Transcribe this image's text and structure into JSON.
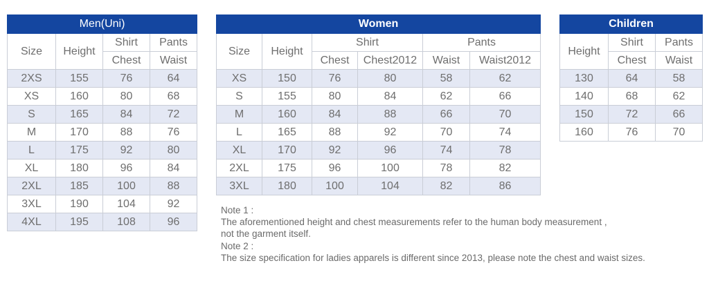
{
  "men": {
    "title": "Men(Uni)",
    "headers": {
      "size": "Size",
      "height": "Height",
      "shirt": "Shirt",
      "pants": "Pants",
      "chest": "Chest",
      "waist": "Waist"
    },
    "rows": [
      [
        "2XS",
        "155",
        "76",
        "64"
      ],
      [
        "XS",
        "160",
        "80",
        "68"
      ],
      [
        "S",
        "165",
        "84",
        "72"
      ],
      [
        "M",
        "170",
        "88",
        "76"
      ],
      [
        "L",
        "175",
        "92",
        "80"
      ],
      [
        "XL",
        "180",
        "96",
        "84"
      ],
      [
        "2XL",
        "185",
        "100",
        "88"
      ],
      [
        "3XL",
        "190",
        "104",
        "92"
      ],
      [
        "4XL",
        "195",
        "108",
        "96"
      ]
    ]
  },
  "women": {
    "title": "Women",
    "headers": {
      "size": "Size",
      "height": "Height",
      "shirt": "Shirt",
      "pants": "Pants",
      "chest": "Chest",
      "chest2012": "Chest2012",
      "waist": "Waist",
      "waist2012": "Waist2012"
    },
    "rows": [
      [
        "XS",
        "150",
        "76",
        "80",
        "58",
        "62"
      ],
      [
        "S",
        "155",
        "80",
        "84",
        "62",
        "66"
      ],
      [
        "M",
        "160",
        "84",
        "88",
        "66",
        "70"
      ],
      [
        "L",
        "165",
        "88",
        "92",
        "70",
        "74"
      ],
      [
        "XL",
        "170",
        "92",
        "96",
        "74",
        "78"
      ],
      [
        "2XL",
        "175",
        "96",
        "100",
        "78",
        "82"
      ],
      [
        "3XL",
        "180",
        "100",
        "104",
        "82",
        "86"
      ]
    ]
  },
  "children": {
    "title": "Children",
    "headers": {
      "height": "Height",
      "shirt": "Shirt",
      "pants": "Pants",
      "chest": "Chest",
      "waist": "Waist"
    },
    "rows": [
      [
        "130",
        "64",
        "58"
      ],
      [
        "140",
        "68",
        "62"
      ],
      [
        "150",
        "72",
        "66"
      ],
      [
        "160",
        "76",
        "70"
      ]
    ]
  },
  "notes": {
    "note1_label": "Note 1 :",
    "note1_line1": "The aforementioned height and chest measurements refer to the human body measurement ,",
    "note1_line2": "not the garment itself.",
    "note2_label": "Note 2 :",
    "note2_line1": "The size specification for ladies apparels is different since 2013, please note the chest and waist sizes."
  }
}
